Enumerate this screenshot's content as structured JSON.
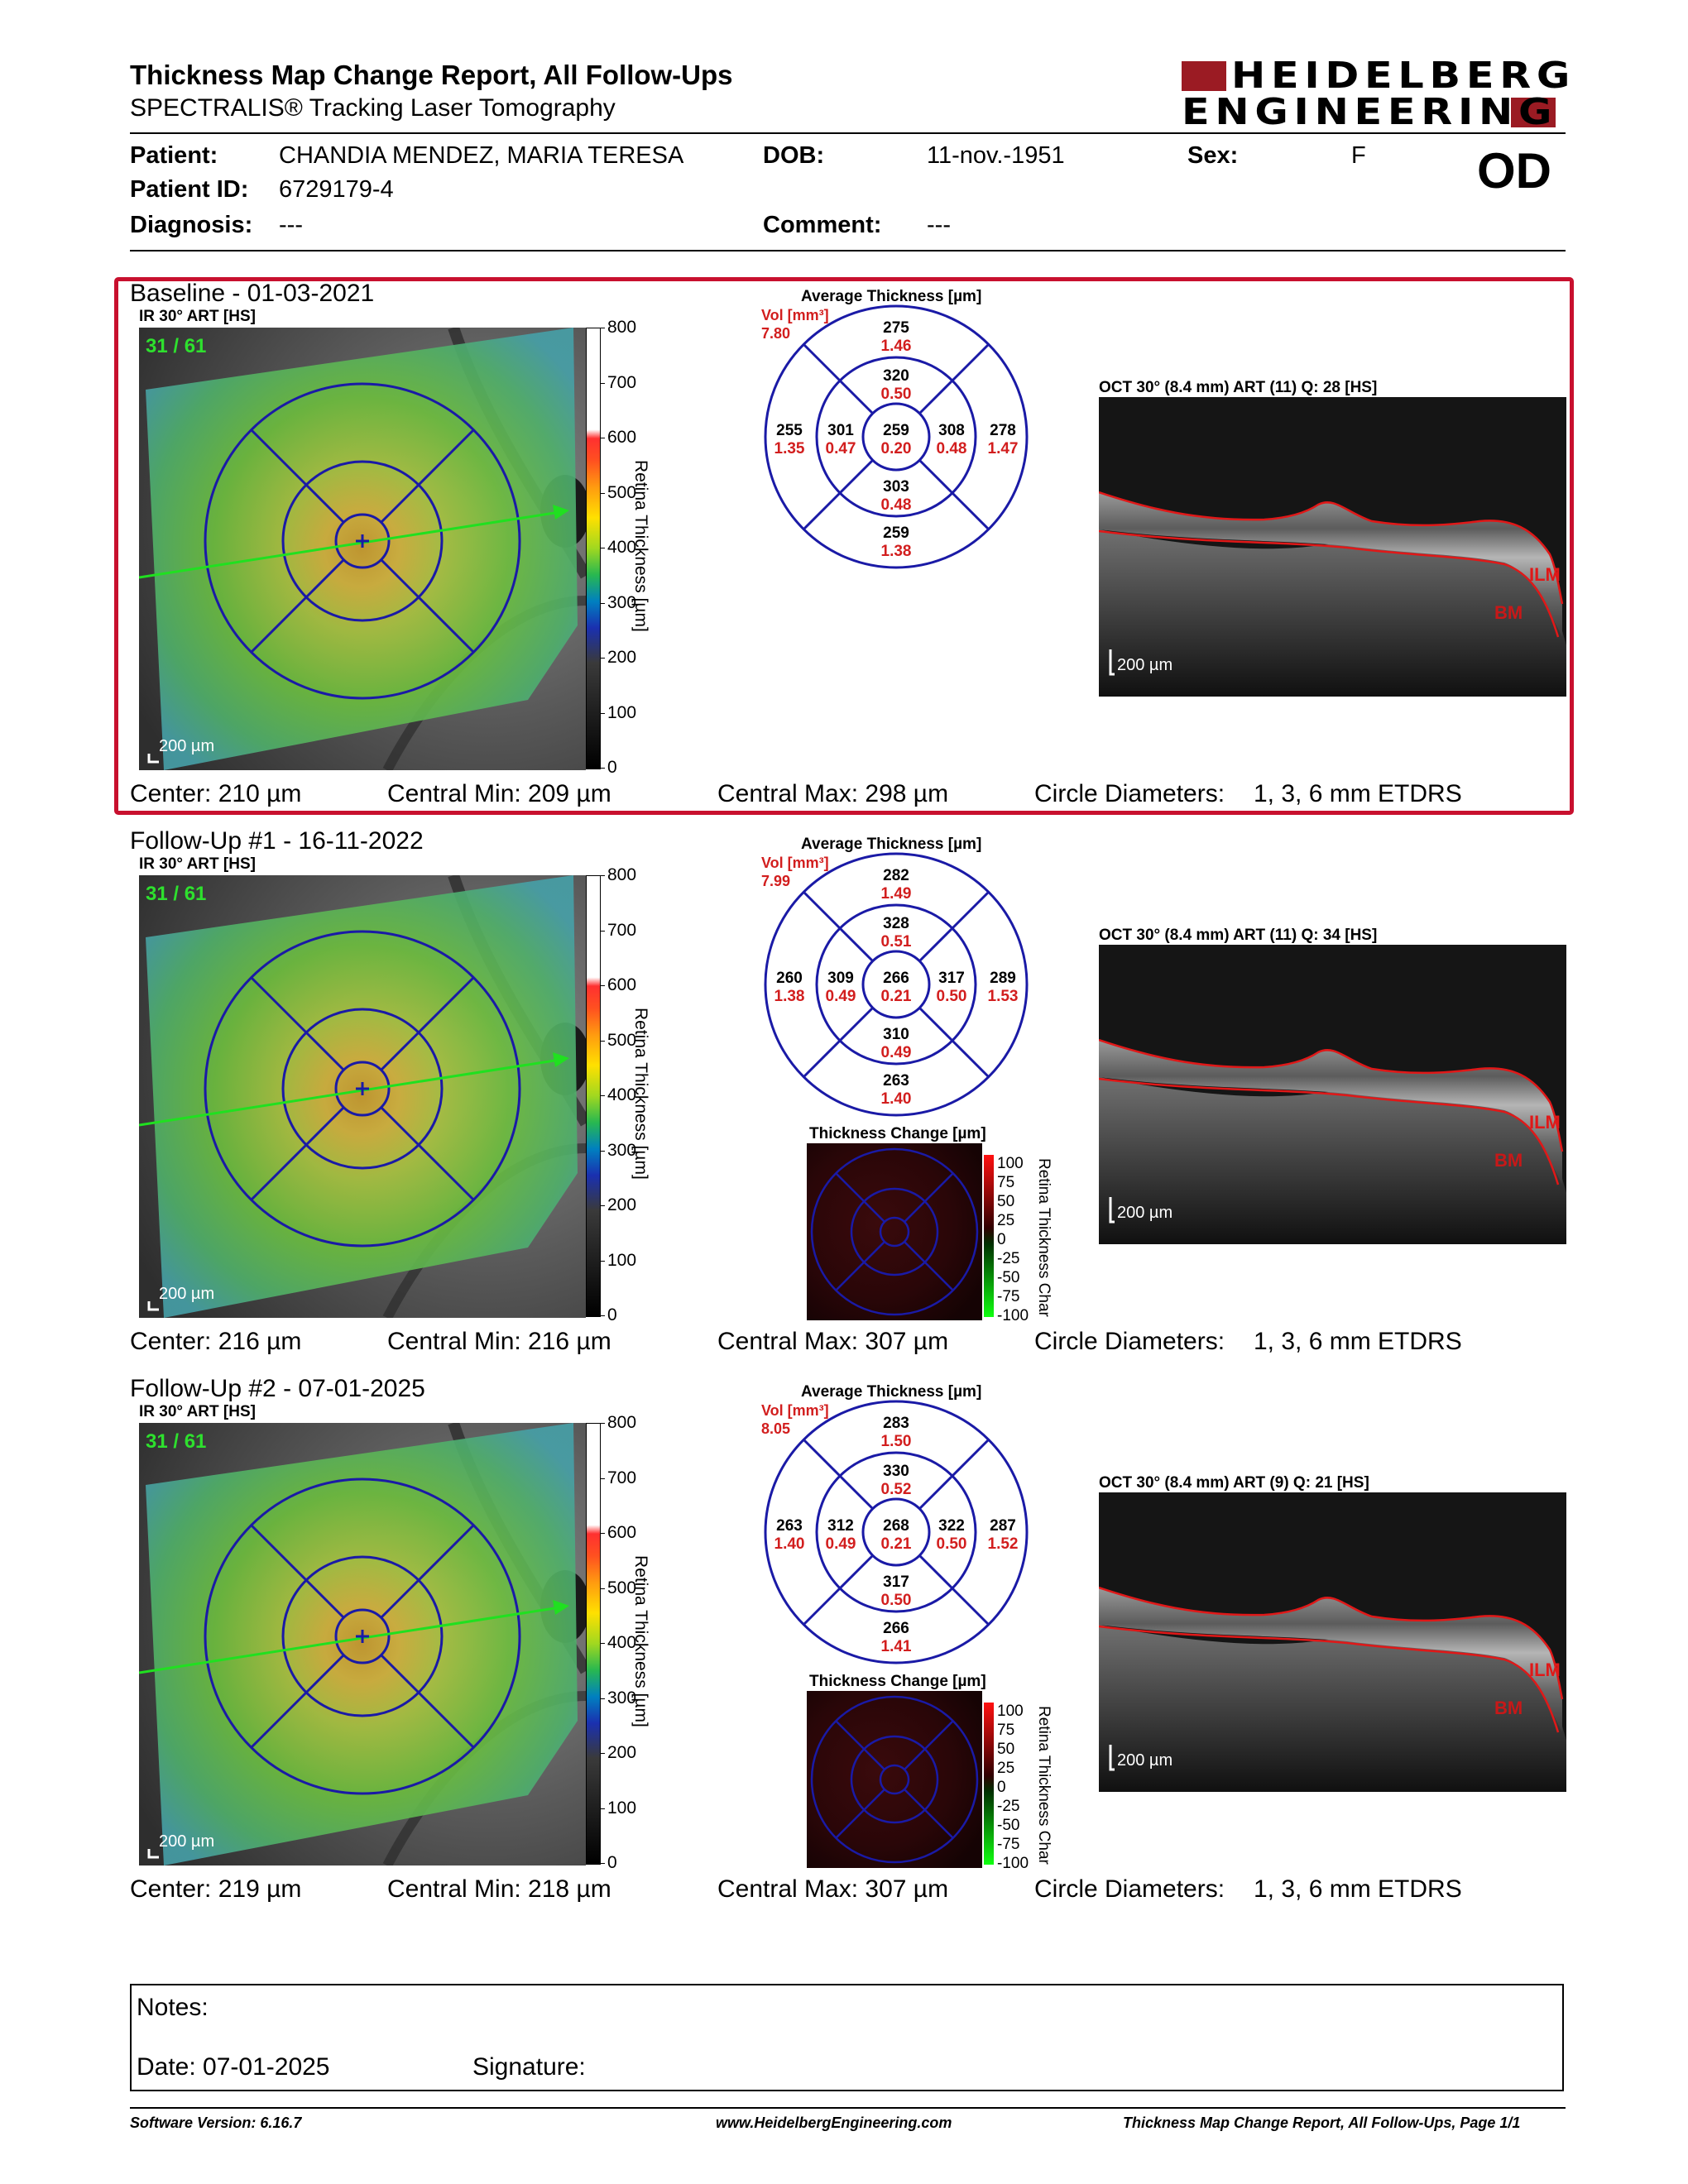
{
  "header": {
    "title": "Thickness Map Change Report, All Follow-Ups",
    "subtitle": "SPECTRALIS® Tracking Laser Tomography",
    "logo_line1": "HEIDELBERG",
    "logo_line2": "ENGINEERING",
    "eye": "OD"
  },
  "patient": {
    "patient_label": "Patient:",
    "patient_value": "CHANDIA MENDEZ, MARIA TERESA",
    "dob_label": "DOB:",
    "dob_value": "11-nov.-1951",
    "sex_label": "Sex:",
    "sex_value": "F",
    "id_label": "Patient ID:",
    "id_value": "6729179-4",
    "diagnosis_label": "Diagnosis:",
    "diagnosis_value": "---",
    "comment_label": "Comment:",
    "comment_value": "---"
  },
  "common": {
    "ir_label": "IR 30° ART [HS]",
    "scale_ir": "200 µm",
    "scale_oct": "200 µm",
    "colorbar_title": "Retina Thickness [µm]",
    "colorbar_ticks": [
      "800",
      "700",
      "600",
      "500",
      "400",
      "300",
      "200",
      "100",
      "0"
    ],
    "avg_title": "Average Thickness [µm]",
    "vol_label": "Vol [mm³]",
    "tc_title": "Thickness Change [µm]",
    "tc_ticks": [
      "100",
      "75",
      "50",
      "25",
      "0",
      "-25",
      "-50",
      "-75",
      "-100"
    ],
    "tc_bar_title": "Retina Thickness Char",
    "ilm": "ILM",
    "bm": "BM",
    "circle_label": "Circle Diameters:",
    "circle_value": "1, 3, 6 mm ETDRS"
  },
  "exams": [
    {
      "title": "Baseline - 01-03-2021",
      "frame_count": "31 / 61",
      "vol": "7.80",
      "oct_label": "OCT 30° (8.4 mm) ART (11) Q: 28 [HS]",
      "etdrs": {
        "c": [
          "259",
          "0.20"
        ],
        "is": [
          "320",
          "0.50"
        ],
        "ii": [
          "303",
          "0.48"
        ],
        "it": [
          "308",
          "0.48"
        ],
        "in": [
          "301",
          "0.47"
        ],
        "os": [
          "275",
          "1.46"
        ],
        "oi": [
          "259",
          "1.38"
        ],
        "ot": [
          "278",
          "1.47"
        ],
        "on": [
          "255",
          "1.35"
        ]
      },
      "center": "Center: 210 µm",
      "cmin": "Central Min: 209 µm",
      "cmax": "Central Max: 298 µm",
      "has_change": false
    },
    {
      "title": "Follow-Up #1 - 16-11-2022",
      "frame_count": "31 / 61",
      "vol": "7.99",
      "oct_label": "OCT 30° (8.4 mm) ART (11) Q: 34 [HS]",
      "etdrs": {
        "c": [
          "266",
          "0.21"
        ],
        "is": [
          "328",
          "0.51"
        ],
        "ii": [
          "310",
          "0.49"
        ],
        "it": [
          "317",
          "0.50"
        ],
        "in": [
          "309",
          "0.49"
        ],
        "os": [
          "282",
          "1.49"
        ],
        "oi": [
          "263",
          "1.40"
        ],
        "ot": [
          "289",
          "1.53"
        ],
        "on": [
          "260",
          "1.38"
        ]
      },
      "center": "Center: 216 µm",
      "cmin": "Central Min: 216 µm",
      "cmax": "Central Max: 307 µm",
      "has_change": true
    },
    {
      "title": "Follow-Up #2 - 07-01-2025",
      "frame_count": "31 / 61",
      "vol": "8.05",
      "oct_label": "OCT 30° (8.4 mm) ART (9) Q: 21 [HS]",
      "etdrs": {
        "c": [
          "268",
          "0.21"
        ],
        "is": [
          "330",
          "0.52"
        ],
        "ii": [
          "317",
          "0.50"
        ],
        "it": [
          "322",
          "0.50"
        ],
        "in": [
          "312",
          "0.49"
        ],
        "os": [
          "283",
          "1.50"
        ],
        "oi": [
          "266",
          "1.41"
        ],
        "ot": [
          "287",
          "1.52"
        ],
        "on": [
          "263",
          "1.40"
        ]
      },
      "center": "Center: 219 µm",
      "cmin": "Central Min: 218 µm",
      "cmax": "Central Max: 307 µm",
      "has_change": true
    }
  ],
  "notes": {
    "notes_label": "Notes:",
    "date_label": "Date: 07-01-2025",
    "signature_label": "Signature:"
  },
  "footer": {
    "software": "Software Version: 6.16.7",
    "website": "www.HeidelbergEngineering.com",
    "page": "Thickness Map Change Report, All Follow-Ups, Page 1/1"
  },
  "colors": {
    "accent_red": "#c8102e",
    "grid_blue": "#1a1aa6",
    "value_red": "#d21e1e"
  }
}
